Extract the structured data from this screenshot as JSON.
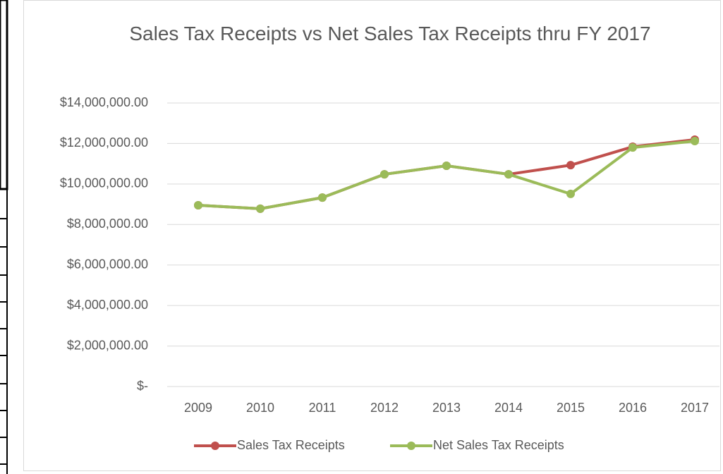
{
  "chart_data": {
    "type": "line",
    "title": "Sales Tax Receipts vs Net Sales Tax Receipts thru FY 2017",
    "categories": [
      "2009",
      "2010",
      "2011",
      "2012",
      "2013",
      "2014",
      "2015",
      "2016",
      "2017"
    ],
    "series": [
      {
        "name": "Sales Tax Receipts",
        "color": "#c0504d",
        "values": [
          8950000,
          8780000,
          9330000,
          10480000,
          10900000,
          10480000,
          10930000,
          11840000,
          12190000
        ]
      },
      {
        "name": "Net Sales Tax Receipts",
        "color": "#9bbb59",
        "values": [
          8950000,
          8780000,
          9330000,
          10480000,
          10900000,
          10480000,
          9510000,
          11800000,
          12120000
        ]
      }
    ],
    "ylim": [
      0,
      14000000
    ],
    "yticks": [
      {
        "value": 0,
        "label": "$-"
      },
      {
        "value": 2000000,
        "label": "$2,000,000.00"
      },
      {
        "value": 4000000,
        "label": "$4,000,000.00"
      },
      {
        "value": 6000000,
        "label": "$6,000,000.00"
      },
      {
        "value": 8000000,
        "label": "$8,000,000.00"
      },
      {
        "value": 10000000,
        "label": "$10,000,000.00"
      },
      {
        "value": 12000000,
        "label": "$12,000,000.00"
      },
      {
        "value": 14000000,
        "label": "$14,000,000.00"
      }
    ],
    "grid": true,
    "legend": "bottom"
  }
}
